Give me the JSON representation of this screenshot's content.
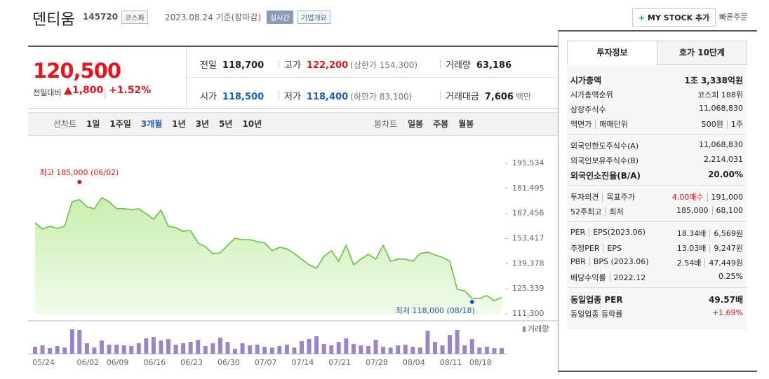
{
  "header": {
    "name": "덴티움",
    "code": "145720",
    "market": "코스피",
    "date": "2023.08.24 기준(장마감)",
    "realtime": "실시간",
    "overview": "기업개요",
    "mystock": "MY STOCK 추가",
    "quick_order": "빠른주문"
  },
  "price": {
    "current": "120,500",
    "change_label": "전일대비",
    "change": "1,800",
    "change_pct": "+1.52%"
  },
  "stats": [
    {
      "label": "전일",
      "value": "118,700"
    },
    {
      "label": "고가",
      "value": "122,200",
      "note": "(상한가 154,300)",
      "color": "#e4151c"
    },
    {
      "label": "거래량",
      "value": "63,186"
    },
    {
      "label": "시가",
      "value": "118,500",
      "color": "#1a5fbe"
    },
    {
      "label": "저가",
      "value": "118,400",
      "note": "(하한가 83,100)",
      "color": "#1a5fbe"
    },
    {
      "label": "거래대금",
      "value": "7,606",
      "note": "백만"
    }
  ],
  "chart_tabs": {
    "line_label": "선차트",
    "line": [
      "1일",
      "1주일",
      "3개월",
      "1년",
      "3년",
      "5년",
      "10년"
    ],
    "selected": "3개월",
    "candle_label": "봉차트",
    "candle": [
      "일봉",
      "주봉",
      "월봉"
    ]
  },
  "chart_data": {
    "type": "line",
    "color": "#62bd3c",
    "categories": [
      "05/24",
      null,
      null,
      null,
      null,
      null,
      "06/02",
      null,
      null,
      null,
      "06/09",
      null,
      null,
      null,
      null,
      "06/16",
      null,
      null,
      null,
      null,
      "06/23",
      null,
      null,
      null,
      null,
      "06/30",
      null,
      null,
      null,
      null,
      "07/07",
      null,
      null,
      null,
      null,
      "07/14",
      null,
      null,
      null,
      null,
      "07/21",
      null,
      null,
      null,
      null,
      "07/28",
      null,
      null,
      null,
      null,
      "08/04",
      null,
      null,
      null,
      null,
      "08/11",
      null,
      null,
      null,
      "08/18",
      null,
      null,
      null,
      null
    ],
    "series": [
      {
        "name": "종가",
        "color": "#62bd3c",
        "values": [
          162200,
          158700,
          160300,
          159100,
          160300,
          174000,
          175200,
          171200,
          170100,
          176300,
          174000,
          170100,
          170100,
          169700,
          170100,
          167300,
          164200,
          169300,
          160300,
          159500,
          157500,
          157900,
          150900,
          148900,
          145000,
          145400,
          149700,
          153600,
          152800,
          152800,
          151700,
          150900,
          146600,
          148500,
          147700,
          145000,
          141900,
          138700,
          136800,
          143400,
          146600,
          140700,
          149700,
          138700,
          141900,
          144600,
          141900,
          149700,
          140700,
          141900,
          141900,
          140700,
          145000,
          145800,
          144200,
          143000,
          140700,
          125000,
          124200,
          119900,
          119900,
          121500,
          118700,
          120500
        ]
      },
      {
        "name": "거래량",
        "color": "#9b85c9",
        "axis": "volume",
        "values": [
          80000,
          96000,
          64000,
          88000,
          72000,
          280000,
          272000,
          120000,
          72000,
          152000,
          104000,
          104000,
          96000,
          88000,
          120000,
          176000,
          192000,
          152000,
          168000,
          104000,
          120000,
          136000,
          160000,
          88000,
          120000,
          184000,
          136000,
          56000,
          120000,
          96000,
          104000,
          80000,
          72000,
          88000,
          104000,
          72000,
          144000,
          168000,
          200000,
          112000,
          96000,
          136000,
          176000,
          112000,
          96000,
          88000,
          160000,
          80000,
          72000,
          96000,
          104000,
          80000,
          72000,
          264000,
          136000,
          96000,
          216000,
          272000,
          96000,
          168000,
          72000,
          80000,
          64000,
          63186
        ]
      }
    ],
    "ylim": [
      111300,
      195534
    ],
    "yticks": [
      {
        "value": 195534,
        "label": "195,534"
      },
      {
        "value": 181495,
        "label": "181,495"
      },
      {
        "value": 167456,
        "label": "167,456"
      },
      {
        "value": 153417,
        "label": "153,417"
      },
      {
        "value": 139378,
        "label": "139,378"
      },
      {
        "value": 125339,
        "label": "125,339"
      },
      {
        "value": 111300,
        "label": "111,300"
      }
    ],
    "volume_lim": [
      0,
      320000
    ],
    "annotations": [
      {
        "label": "최고 185,000 (06/02)",
        "value": 185000,
        "x": "06/02",
        "color": "#e4151c"
      },
      {
        "label": "최저 118,000 (08/18)",
        "value": 118000,
        "x": "08/18",
        "color": "#1a5fbe"
      }
    ]
  },
  "panel": {
    "tabs": [
      "투자정보",
      "호가 10단계"
    ],
    "groups": [
      [
        {
          "label": "시가총액",
          "value": "1조 3,338억원",
          "emphasis": true
        },
        {
          "label": "시가총액순위",
          "value": "코스피 188위"
        },
        {
          "label": "상장주식수",
          "value": "11,068,830"
        },
        {
          "label": [
            "액면가",
            "매매단위"
          ],
          "value": [
            "500원",
            "1주"
          ]
        }
      ],
      [
        {
          "label": "외국인한도주식수(A)",
          "value": "11,068,830"
        },
        {
          "label": "외국인보유주식수(B)",
          "value": "2,214,031"
        },
        {
          "label": "외국인소진율(B/A)",
          "value": "20.00%",
          "emphasis": true
        }
      ],
      [
        {
          "label": [
            "투자의견",
            "목표주가"
          ],
          "value": [
            "4.00매수",
            "191,000"
          ],
          "color": "#e4151c"
        },
        {
          "label": [
            "52주최고",
            "최저"
          ],
          "value": [
            "185,000",
            "68,100"
          ]
        }
      ],
      [
        {
          "label": [
            "PER",
            "EPS(2023.06)"
          ],
          "value": [
            "18.34배",
            "6,569원"
          ]
        },
        {
          "label": [
            "추정PER",
            "EPS"
          ],
          "value": [
            "13.03배",
            "9,247원"
          ]
        },
        {
          "label": [
            "PBR",
            "BPS (2023.06)"
          ],
          "value": [
            "2.54배",
            "47,449원"
          ]
        },
        {
          "label": [
            "배당수익률",
            "2022.12"
          ],
          "value": "0.25%"
        }
      ],
      [
        {
          "label": "동일업종 PER",
          "value": "49.57배",
          "emphasis": true
        },
        {
          "label": "동일업종 등락률",
          "value": "+1.69%",
          "color": "#e4151c"
        }
      ]
    ]
  }
}
